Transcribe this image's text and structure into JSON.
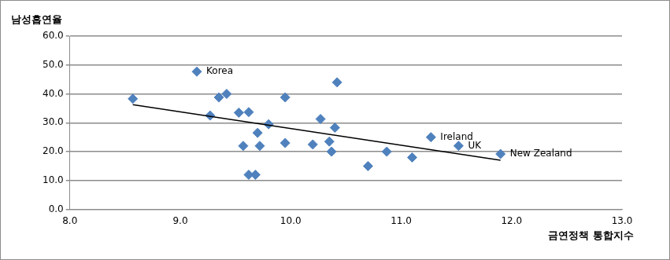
{
  "chart_data": {
    "type": "scatter",
    "x_label": "금연정책 통합지수",
    "y_label": "남성흡연율",
    "x": [
      8.57,
      9.15,
      9.27,
      9.35,
      9.42,
      9.53,
      9.57,
      9.62,
      9.62,
      9.68,
      9.7,
      9.72,
      9.8,
      9.95,
      9.95,
      10.2,
      10.27,
      10.35,
      10.37,
      10.4,
      10.42,
      10.7,
      10.87,
      11.1,
      11.27,
      11.52,
      11.9
    ],
    "values": [
      38.3,
      47.7,
      32.5,
      38.8,
      40.0,
      33.5,
      22.0,
      33.7,
      12.0,
      12.0,
      26.5,
      22.0,
      29.5,
      38.8,
      23.0,
      22.5,
      31.3,
      23.5,
      20.0,
      28.3,
      44.0,
      15.0,
      20.0,
      18.0,
      25.0,
      22.0,
      19.2
    ],
    "point_labels": [
      null,
      "Korea",
      null,
      null,
      null,
      null,
      null,
      null,
      null,
      null,
      null,
      null,
      null,
      null,
      null,
      null,
      null,
      null,
      null,
      null,
      null,
      null,
      null,
      null,
      "Ireland",
      "UK",
      "New Zealand"
    ],
    "color": "#4f81bd",
    "marker": "diamond",
    "trend_line": {
      "x": [
        8.57,
        11.9
      ],
      "values": [
        36.3,
        17.0
      ],
      "color": "#000000",
      "line_style": "solid"
    },
    "xlim": [
      8,
      13
    ],
    "xticks": [
      {
        "value": 8,
        "label": "8.0"
      },
      {
        "value": 9,
        "label": "9.0"
      },
      {
        "value": 10,
        "label": "10.0"
      },
      {
        "value": 11,
        "label": "11.0"
      },
      {
        "value": 12,
        "label": "12.0"
      },
      {
        "value": 13,
        "label": "13.0"
      }
    ],
    "ylim": [
      0,
      60
    ],
    "yticks": [
      {
        "value": 0,
        "label": "0.0"
      },
      {
        "value": 10,
        "label": "10.0"
      },
      {
        "value": 20,
        "label": "20.0"
      },
      {
        "value": 30,
        "label": "30.0"
      },
      {
        "value": 40,
        "label": "40.0"
      },
      {
        "value": 50,
        "label": "50.0"
      },
      {
        "value": 60,
        "label": "60.0"
      }
    ],
    "grid": "y"
  }
}
